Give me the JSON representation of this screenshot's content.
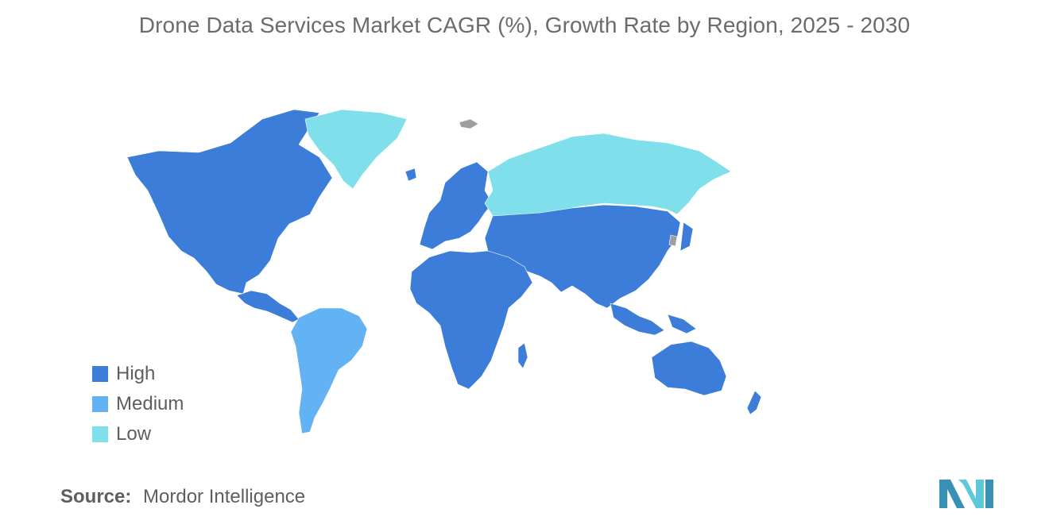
{
  "title": "Drone Data Services Market CAGR (%), Growth Rate by Region, 2025 - 2030",
  "legend": [
    {
      "label": "High",
      "color": "#3b7dd8"
    },
    {
      "label": "Medium",
      "color": "#63b2f3"
    },
    {
      "label": "Low",
      "color": "#7fe0ec"
    }
  ],
  "no_data_color": "#9e9e9e",
  "source": {
    "label": "Source:",
    "value": "Mordor Intelligence"
  },
  "regions": [
    {
      "region": "North America",
      "level": "High"
    },
    {
      "region": "Europe",
      "level": "High"
    },
    {
      "region": "Asia-Pacific",
      "level": "High"
    },
    {
      "region": "Middle East and Africa",
      "level": "High"
    },
    {
      "region": "South America",
      "level": "Medium"
    },
    {
      "region": "Russia",
      "level": "Low"
    },
    {
      "region": "Greenland",
      "level": "Low"
    }
  ],
  "logo_icon": "mordor-intelligence-logo"
}
